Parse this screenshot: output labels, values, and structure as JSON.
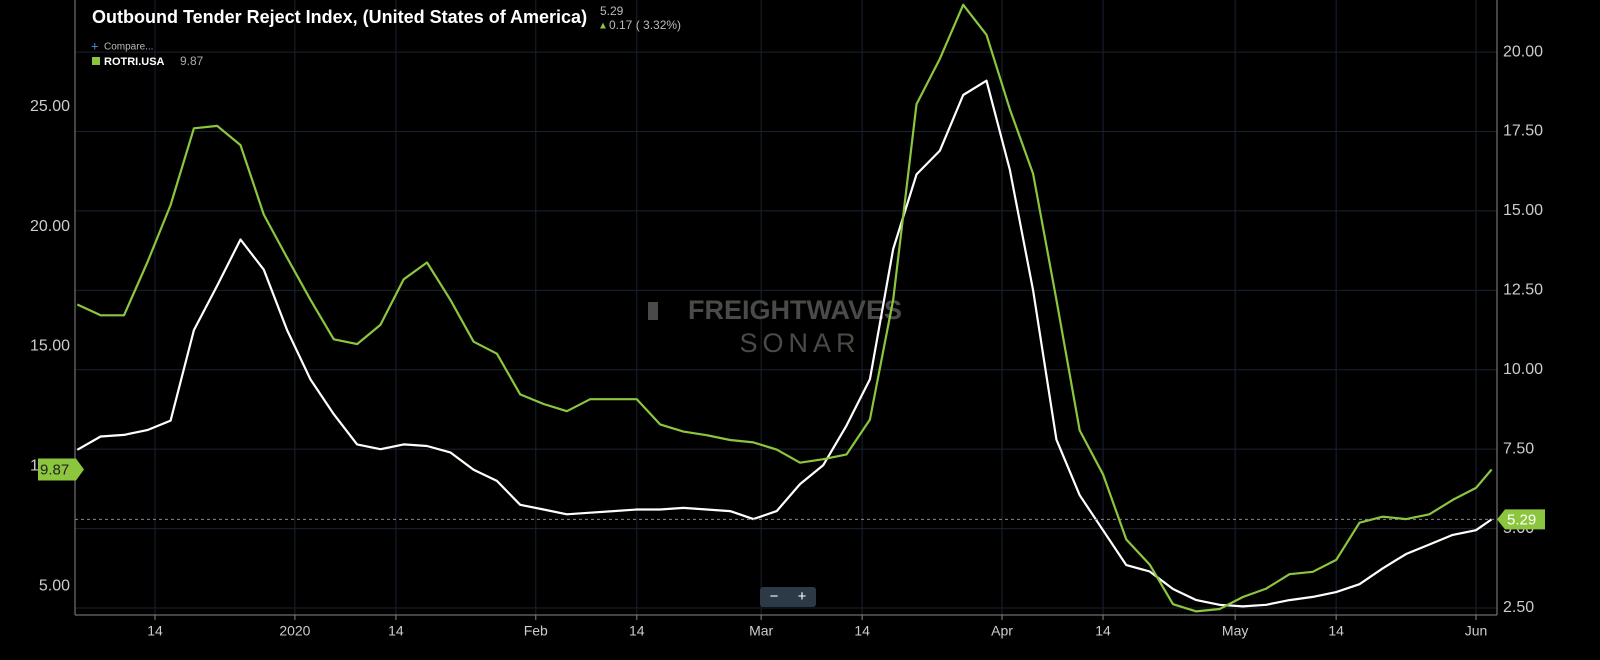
{
  "chart_data": {
    "type": "line",
    "title": "Outbound Tender Reject Index, (United States of America)",
    "change_label": "0.17 ( 3.32%)",
    "compare_label": "Compare...",
    "watermark": [
      "FREIGHTWAVES",
      "SONAR"
    ],
    "zoom_controls": [
      "−",
      "+"
    ],
    "x": [
      1,
      4,
      7,
      10,
      13,
      16,
      19,
      22,
      25,
      28,
      31,
      34,
      37,
      40,
      43,
      46,
      49,
      52,
      55,
      58,
      61,
      64,
      67,
      70,
      73,
      76,
      79,
      82,
      85,
      88,
      91,
      94,
      97,
      100,
      103,
      106,
      109,
      112,
      115,
      118,
      121,
      124,
      127,
      130,
      133,
      136,
      139,
      142,
      145,
      148,
      151,
      154,
      157,
      160,
      163,
      166,
      169,
      172,
      175,
      178,
      181,
      183
    ],
    "xlim": [
      0.7,
      183.7
    ],
    "xticks": [
      {
        "value": 11,
        "label": "14"
      },
      {
        "value": 29,
        "label": "2020"
      },
      {
        "value": 42,
        "label": "14"
      },
      {
        "value": 60,
        "label": "Feb"
      },
      {
        "value": 73,
        "label": "14"
      },
      {
        "value": 89,
        "label": "Mar"
      },
      {
        "value": 102,
        "label": "14"
      },
      {
        "value": 120,
        "label": "Apr"
      },
      {
        "value": 133,
        "label": "14"
      },
      {
        "value": 150,
        "label": "May"
      },
      {
        "value": 163,
        "label": "14"
      },
      {
        "value": 181,
        "label": "Jun"
      }
    ],
    "ylim": [
      3.8,
      29.45
    ],
    "yticks": [
      {
        "value": 5,
        "label": "5.00"
      },
      {
        "value": 10,
        "label": "10.00"
      },
      {
        "value": 15,
        "label": "15.00"
      },
      {
        "value": 20,
        "label": "20.00"
      },
      {
        "value": 25,
        "label": "25.00"
      }
    ],
    "y2lim": [
      2.28,
      21.64
    ],
    "y2ticks": [
      {
        "value": 2.5,
        "label": "2.50"
      },
      {
        "value": 5,
        "label": "5.00"
      },
      {
        "value": 7.5,
        "label": "7.50"
      },
      {
        "value": 10,
        "label": "10.00"
      },
      {
        "value": 12.5,
        "label": "12.50"
      },
      {
        "value": 15,
        "label": "15.00"
      },
      {
        "value": 17.5,
        "label": "17.50"
      },
      {
        "value": 20,
        "label": "20.00"
      }
    ],
    "grid": true,
    "series": [
      {
        "color": "#ffffff",
        "axis": "y2",
        "last_value": 5.29,
        "values": [
          7.48,
          7.9,
          7.95,
          8.1,
          8.4,
          11.25,
          12.65,
          14.1,
          13.15,
          11.25,
          9.7,
          8.6,
          7.65,
          7.5,
          7.65,
          7.6,
          7.4,
          6.85,
          6.5,
          5.75,
          5.6,
          5.45,
          5.5,
          5.55,
          5.6,
          5.6,
          5.65,
          5.6,
          5.55,
          5.3,
          5.55,
          6.4,
          7.0,
          8.25,
          9.7,
          13.8,
          16.15,
          16.9,
          18.65,
          19.1,
          16.3,
          12.5,
          7.8,
          6.05,
          4.95,
          3.85,
          3.65,
          3.1,
          2.75,
          2.6,
          2.55,
          2.6,
          2.75,
          2.85,
          3.0,
          3.25,
          3.75,
          4.2,
          4.5,
          4.8,
          4.95,
          5.29
        ]
      },
      {
        "name": "ROTRI.USA",
        "color": "#8cc63f",
        "axis": "y",
        "last_value": 9.87,
        "values": [
          16.75,
          16.3,
          16.3,
          18.5,
          20.9,
          24.1,
          24.2,
          23.4,
          20.5,
          18.7,
          16.95,
          15.3,
          15.1,
          15.9,
          17.8,
          18.5,
          16.95,
          15.2,
          14.7,
          13.0,
          12.6,
          12.3,
          12.8,
          12.8,
          12.8,
          11.75,
          11.45,
          11.3,
          11.1,
          11.0,
          10.7,
          10.15,
          10.3,
          10.5,
          11.95,
          16.95,
          25.1,
          27.0,
          29.25,
          28.0,
          24.9,
          22.2,
          16.95,
          11.5,
          9.67,
          6.95,
          5.9,
          4.25,
          3.95,
          4.05,
          4.55,
          4.9,
          5.5,
          5.6,
          6.1,
          7.65,
          7.9,
          7.8,
          8.0,
          8.6,
          9.1,
          9.87
        ]
      }
    ]
  }
}
